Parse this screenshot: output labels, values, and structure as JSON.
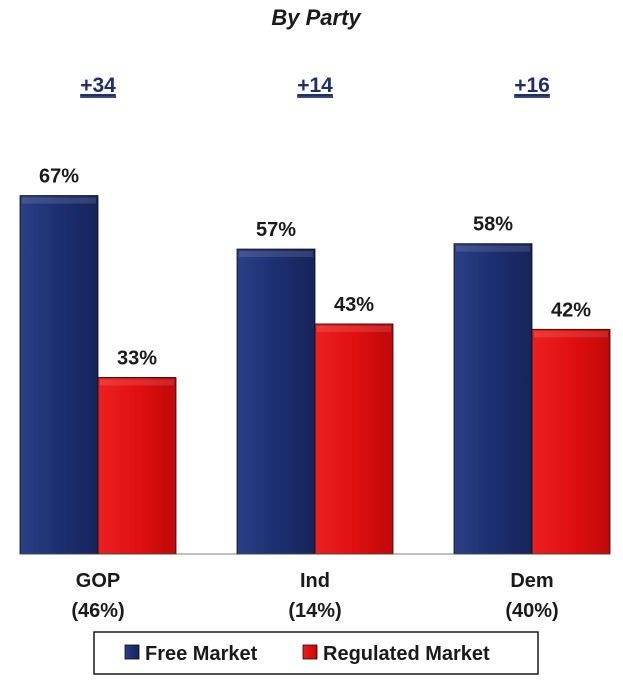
{
  "chart_data": {
    "type": "bar",
    "title": "By Party",
    "categories": [
      "GOP",
      "Ind",
      "Dem"
    ],
    "category_shares": [
      "(46%)",
      "(14%)",
      "(40%)"
    ],
    "differences": [
      "+34",
      "+14",
      "+16"
    ],
    "series": [
      {
        "name": "Free Market",
        "values": [
          67,
          57,
          58
        ],
        "color": "#1c2f70"
      },
      {
        "name": "Regulated Market",
        "values": [
          33,
          43,
          42
        ],
        "color": "#e01010"
      }
    ],
    "value_suffix": "%",
    "ylim": [
      0,
      100
    ],
    "grid": false,
    "legend_position": "bottom"
  }
}
